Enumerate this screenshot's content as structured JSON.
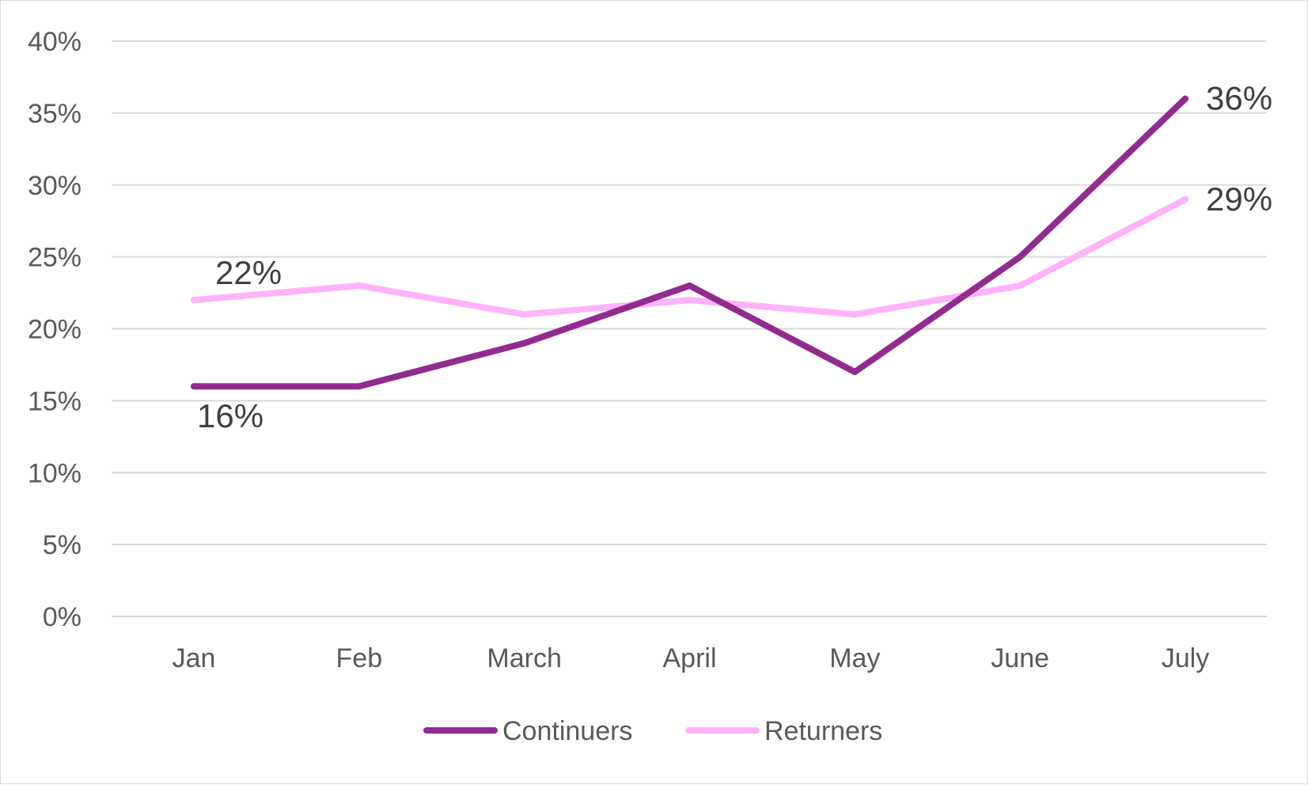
{
  "chart_data": {
    "type": "line",
    "title": "",
    "xlabel": "",
    "ylabel": "",
    "categories": [
      "Jan",
      "Feb",
      "March",
      "April",
      "May",
      "June",
      "July"
    ],
    "series": [
      {
        "name": "Continuers",
        "values": [
          16,
          16,
          19,
          23,
          17,
          25,
          36
        ],
        "color": "#922B8F",
        "data_labels": [
          {
            "index": 0,
            "text": "16%"
          },
          {
            "index": 6,
            "text": "36%"
          }
        ]
      },
      {
        "name": "Returners",
        "values": [
          22,
          23,
          21,
          22,
          21,
          23,
          29
        ],
        "color": "#FFB3FB",
        "data_labels": [
          {
            "index": 0,
            "text": "22%"
          },
          {
            "index": 6,
            "text": "29%"
          }
        ]
      }
    ],
    "ylim": [
      0,
      40
    ],
    "y_ticks": [
      {
        "value": 0,
        "label": "0%"
      },
      {
        "value": 5,
        "label": "5%"
      },
      {
        "value": 10,
        "label": "10%"
      },
      {
        "value": 15,
        "label": "15%"
      },
      {
        "value": 20,
        "label": "20%"
      },
      {
        "value": 25,
        "label": "25%"
      },
      {
        "value": 30,
        "label": "30%"
      },
      {
        "value": 35,
        "label": "35%"
      },
      {
        "value": 40,
        "label": "40%"
      }
    ],
    "grid": true,
    "legend_position": "bottom",
    "colors": {
      "gridline": "#D9D9D9",
      "tick_text": "#595959",
      "data_label_text": "#404040"
    }
  }
}
